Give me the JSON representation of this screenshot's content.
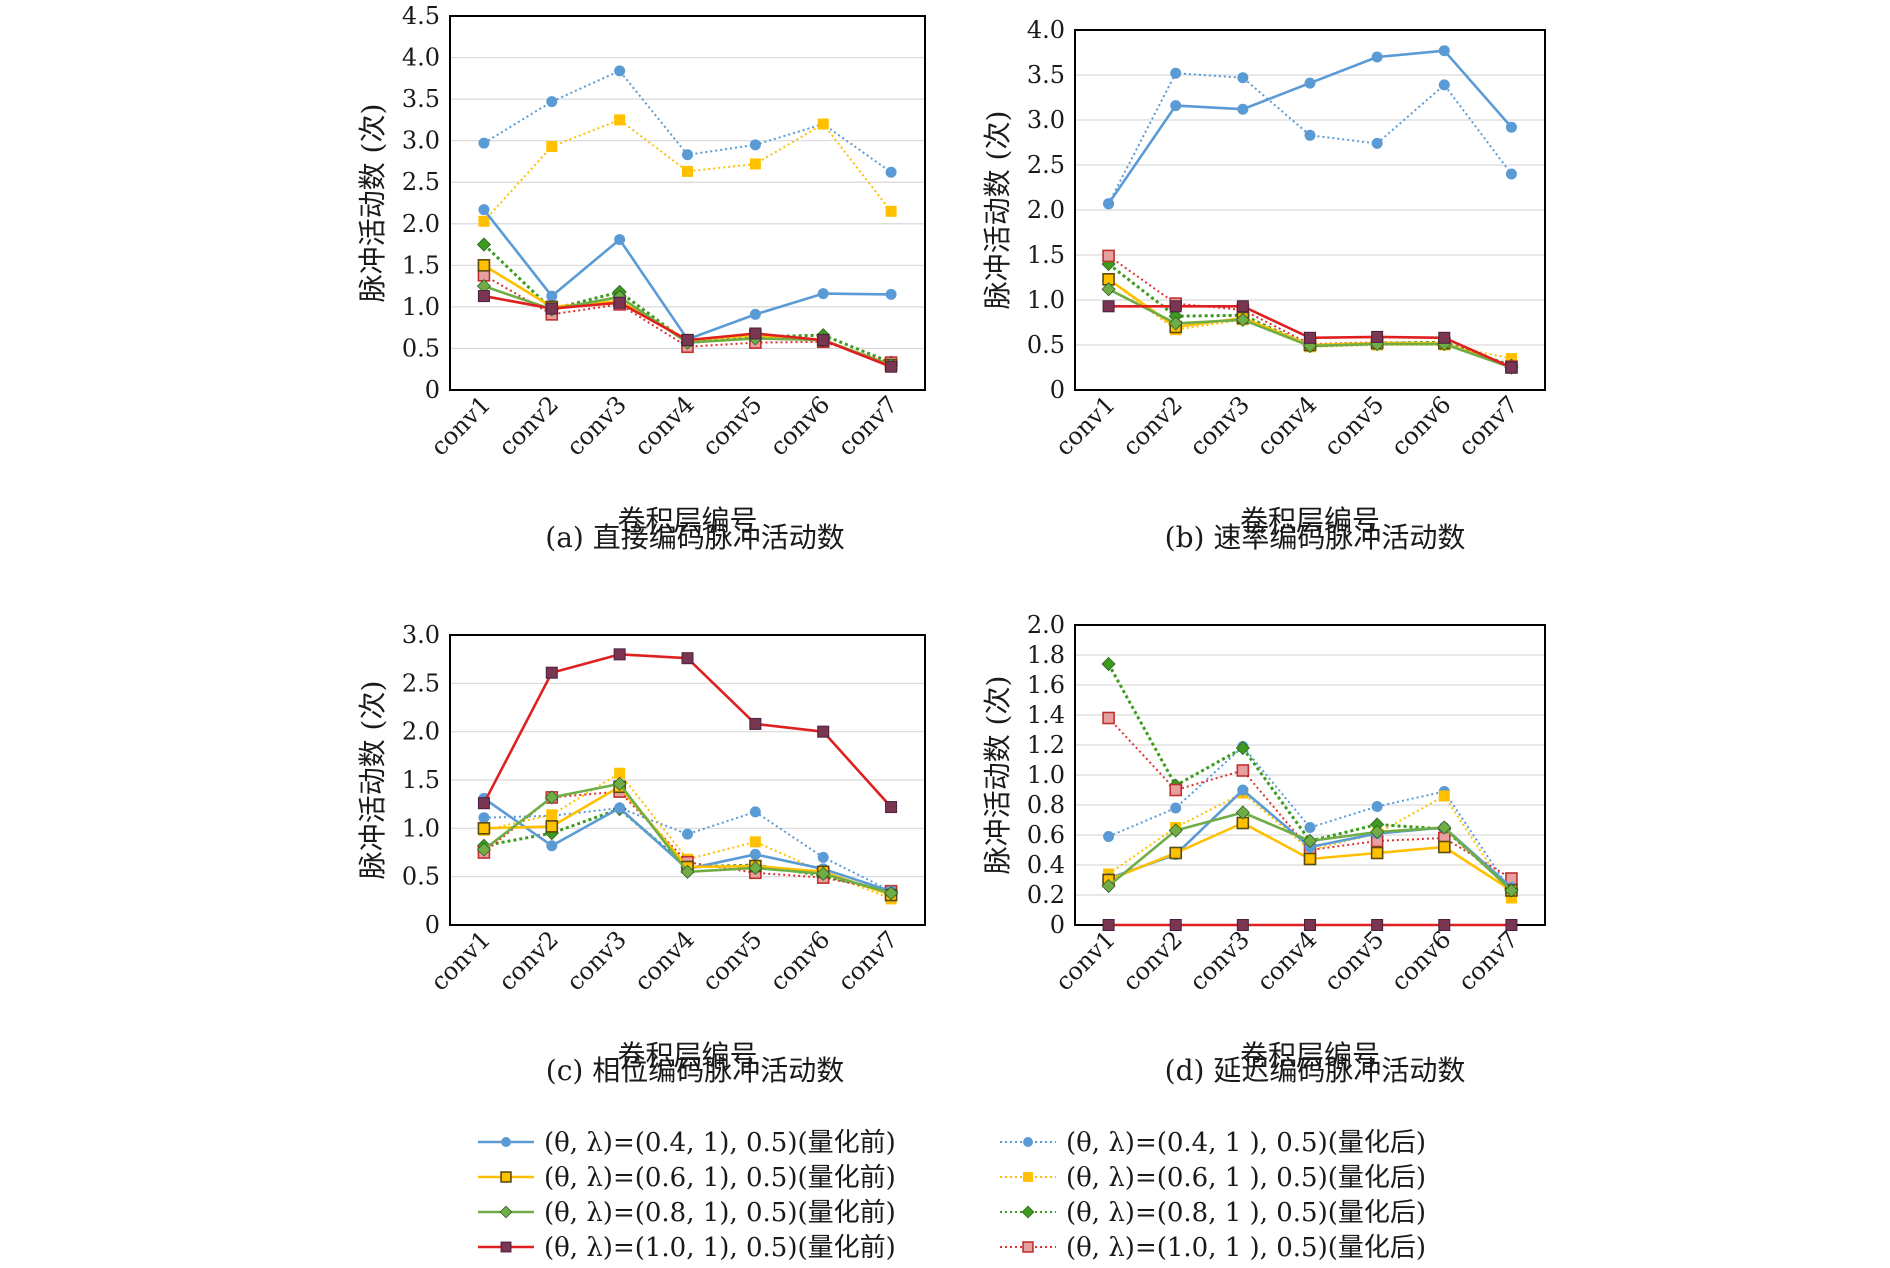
{
  "legend": [
    "(θ, λ)=(0.4, 1), 0.5)(量化前)",
    "(θ, λ)=(0.4, 1 ), 0.5)(量化后)",
    "(θ, λ)=(0.6, 1), 0.5)(量化前)",
    "(θ, λ)=(0.6, 1 ), 0.5)(量化后)",
    "(θ, λ)=(0.8, 1), 0.5)(量化前)",
    "(θ, λ)=(0.8, 1 ), 0.5)(量化后)",
    "(θ, λ)=(1.0, 1), 0.5)(量化前)",
    "(θ, λ)=(1.0, 1 ), 0.5)(量化后)"
  ],
  "series_styles": [
    {
      "color": "#5b9bd5",
      "marker": "circle",
      "line": "solid"
    },
    {
      "color": "#5b9bd5",
      "marker": "circle",
      "line": "dotted"
    },
    {
      "color": "#ffc000",
      "marker": "square-outlined",
      "line": "solid"
    },
    {
      "color": "#ffc000",
      "marker": "square",
      "line": "dotted"
    },
    {
      "color": "#70ad47",
      "marker": "diamond",
      "line": "solid"
    },
    {
      "color": "#3d9b1e",
      "marker": "diamond",
      "line": "dotted"
    },
    {
      "color": "#e02020",
      "marker": "square-dark",
      "line": "solid"
    },
    {
      "color": "#e03030",
      "marker": "square-hatched",
      "line": "dotted"
    }
  ],
  "chart_data": [
    {
      "type": "line",
      "caption": "(a) 直接编码脉冲活动数",
      "xlabel": "卷积层编号",
      "ylabel": "脉冲活动数 (次)",
      "categories": [
        "conv1",
        "conv2",
        "conv3",
        "conv4",
        "conv5",
        "conv6",
        "conv7"
      ],
      "ylim": [
        0,
        4.5
      ],
      "yticks": [
        "0",
        "0.5",
        "1.0",
        "1.5",
        "2.0",
        "2.5",
        "3.0",
        "3.5",
        "4.0",
        "4.5"
      ],
      "grid": true,
      "series": [
        {
          "values": [
            2.17,
            1.13,
            1.81,
            0.61,
            0.91,
            1.16,
            1.15
          ]
        },
        {
          "values": [
            2.97,
            3.47,
            3.84,
            2.83,
            2.95,
            3.2,
            2.62
          ]
        },
        {
          "values": [
            1.5,
            1.0,
            1.07,
            0.6,
            0.66,
            0.6,
            0.3
          ]
        },
        {
          "values": [
            2.03,
            2.93,
            3.25,
            2.63,
            2.72,
            3.2,
            2.15
          ]
        },
        {
          "values": [
            1.25,
            0.97,
            1.12,
            0.57,
            0.62,
            0.6,
            0.3
          ]
        },
        {
          "values": [
            1.75,
            0.97,
            1.18,
            0.57,
            0.64,
            0.66,
            0.33
          ]
        },
        {
          "values": [
            1.13,
            0.98,
            1.05,
            0.6,
            0.68,
            0.6,
            0.28
          ]
        },
        {
          "values": [
            1.38,
            0.91,
            1.03,
            0.52,
            0.57,
            0.58,
            0.33
          ]
        }
      ]
    },
    {
      "type": "line",
      "caption": "(b) 速率编码脉冲活动数",
      "xlabel": "卷积层编号",
      "ylabel": "脉冲活动数 (次)",
      "categories": [
        "conv1",
        "conv2",
        "conv3",
        "conv4",
        "conv5",
        "conv6",
        "conv7"
      ],
      "ylim": [
        0,
        4.0
      ],
      "yticks": [
        "0",
        "0.5",
        "1.0",
        "1.5",
        "2.0",
        "2.5",
        "3.0",
        "3.5",
        "4.0"
      ],
      "grid": true,
      "series": [
        {
          "values": [
            2.07,
            3.16,
            3.12,
            3.41,
            3.7,
            3.77,
            2.92
          ]
        },
        {
          "values": [
            2.07,
            3.52,
            3.47,
            2.83,
            2.74,
            3.39,
            2.4
          ]
        },
        {
          "values": [
            1.23,
            0.7,
            0.8,
            0.5,
            0.52,
            0.52,
            0.25
          ]
        },
        {
          "values": [
            1.23,
            0.67,
            0.78,
            0.48,
            0.5,
            0.5,
            0.35
          ]
        },
        {
          "values": [
            1.12,
            0.74,
            0.78,
            0.49,
            0.51,
            0.51,
            0.25
          ]
        },
        {
          "values": [
            1.4,
            0.82,
            0.83,
            0.49,
            0.52,
            0.53,
            0.27
          ]
        },
        {
          "values": [
            0.93,
            0.93,
            0.93,
            0.58,
            0.59,
            0.58,
            0.25
          ]
        },
        {
          "values": [
            1.49,
            0.96,
            0.89,
            0.51,
            0.53,
            0.52,
            0.26
          ]
        }
      ]
    },
    {
      "type": "line",
      "caption": "(c) 相位编码脉冲活动数",
      "xlabel": "卷积层编号",
      "ylabel": "脉冲活动数 (次)",
      "categories": [
        "conv1",
        "conv2",
        "conv3",
        "conv4",
        "conv5",
        "conv6",
        "conv7"
      ],
      "ylim": [
        0,
        3.0
      ],
      "yticks": [
        "0",
        "0.5",
        "1.0",
        "1.5",
        "2.0",
        "2.5",
        "3.0"
      ],
      "grid": true,
      "series": [
        {
          "values": [
            1.31,
            0.82,
            1.21,
            0.58,
            0.73,
            0.58,
            0.35
          ]
        },
        {
          "values": [
            1.11,
            1.13,
            1.21,
            0.94,
            1.17,
            0.7,
            0.35
          ]
        },
        {
          "values": [
            1.0,
            1.02,
            1.43,
            0.6,
            0.61,
            0.55,
            0.31
          ]
        },
        {
          "values": [
            0.98,
            1.14,
            1.57,
            0.68,
            0.86,
            0.55,
            0.27
          ]
        },
        {
          "values": [
            0.78,
            1.32,
            1.46,
            0.55,
            0.59,
            0.53,
            0.33
          ]
        },
        {
          "values": [
            0.82,
            0.95,
            1.2,
            0.6,
            0.62,
            0.51,
            0.34
          ]
        },
        {
          "values": [
            1.26,
            2.61,
            2.8,
            2.76,
            2.08,
            2.0,
            1.22
          ]
        },
        {
          "values": [
            0.75,
            1.32,
            1.38,
            0.65,
            0.54,
            0.49,
            0.35
          ]
        }
      ]
    },
    {
      "type": "line",
      "caption": "(d) 延迟编码脉冲活动数",
      "xlabel": "卷积层编号",
      "ylabel": "脉冲活动数 (次)",
      "categories": [
        "conv1",
        "conv2",
        "conv3",
        "conv4",
        "conv5",
        "conv6",
        "conv7"
      ],
      "ylim": [
        0,
        2.0
      ],
      "yticks": [
        "0",
        "0.2",
        "0.4",
        "0.6",
        "0.8",
        "1.0",
        "1.2",
        "1.4",
        "1.6",
        "1.8",
        "2.0"
      ],
      "grid": true,
      "series": [
        {
          "values": [
            0.31,
            0.47,
            0.9,
            0.52,
            0.61,
            0.65,
            0.25
          ]
        },
        {
          "values": [
            0.59,
            0.78,
            1.19,
            0.65,
            0.79,
            0.89,
            0.22
          ]
        },
        {
          "values": [
            0.3,
            0.48,
            0.68,
            0.44,
            0.48,
            0.52,
            0.23
          ]
        },
        {
          "values": [
            0.34,
            0.65,
            0.88,
            0.5,
            0.61,
            0.86,
            0.18
          ]
        },
        {
          "values": [
            0.26,
            0.63,
            0.75,
            0.56,
            0.62,
            0.65,
            0.23
          ]
        },
        {
          "values": [
            1.74,
            0.93,
            1.18,
            0.56,
            0.67,
            0.64,
            0.24
          ]
        },
        {
          "values": [
            0,
            0,
            0,
            0,
            0,
            0,
            0
          ]
        },
        {
          "values": [
            1.38,
            0.9,
            1.03,
            0.5,
            0.56,
            0.58,
            0.31
          ]
        }
      ]
    }
  ]
}
